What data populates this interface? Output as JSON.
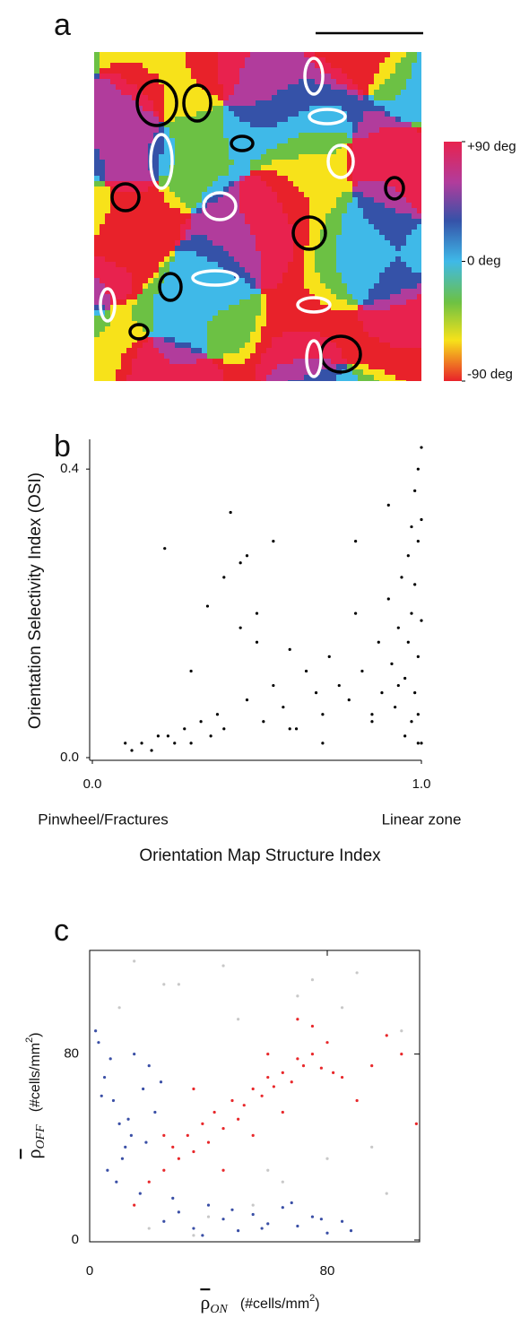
{
  "chart_data": [
    {
      "type": "image",
      "panel_label": "a",
      "clim": [
        -90,
        90
      ],
      "colorbar_ticks": [
        {
          "value": 90,
          "label": "+90 deg"
        },
        {
          "value": 0,
          "label": "0 deg"
        },
        {
          "value": -90,
          "label": "-90 deg"
        }
      ]
    },
    {
      "type": "scatter",
      "panel_label": "b",
      "color": "#000000",
      "ylabel": "Orientation Selectivity Index (OSI)",
      "xlabel": "Orientation Map Structure Index",
      "annotations": [
        "Pinwheel/Fractures",
        "Linear zone"
      ],
      "xlim": [
        0,
        1
      ],
      "ylim": [
        0,
        0.44
      ],
      "xticks": [
        {
          "value": 0,
          "label": "0.0"
        },
        {
          "value": 1,
          "label": "1.0"
        }
      ],
      "yticks": [
        {
          "value": 0,
          "label": "0.0"
        },
        {
          "value": 0.4,
          "label": "0.4"
        }
      ],
      "x": [
        0.12,
        0.15,
        0.18,
        0.2,
        0.22,
        0.25,
        0.28,
        0.3,
        0.33,
        0.35,
        0.38,
        0.4,
        0.42,
        0.45,
        0.47,
        0.5,
        0.52,
        0.55,
        0.58,
        0.6,
        0.62,
        0.65,
        0.68,
        0.7,
        0.72,
        0.75,
        0.78,
        0.8,
        0.82,
        0.85,
        0.87,
        0.88,
        0.9,
        0.91,
        0.92,
        0.93,
        0.94,
        0.95,
        0.95,
        0.96,
        0.96,
        0.97,
        0.97,
        0.97,
        0.98,
        0.98,
        0.98,
        0.99,
        0.99,
        0.99,
        0.99,
        0.99,
        1.0,
        1.0,
        1.0,
        1.0,
        0.23,
        0.4,
        0.45,
        0.47,
        0.5,
        0.36,
        0.55,
        0.8,
        0.85,
        0.1,
        0.3,
        0.6,
        0.7,
        0.9,
        0.93
      ],
      "values": [
        0.01,
        0.02,
        0.01,
        0.03,
        0.29,
        0.02,
        0.04,
        0.12,
        0.05,
        0.21,
        0.06,
        0.25,
        0.34,
        0.27,
        0.08,
        0.2,
        0.05,
        0.1,
        0.07,
        0.15,
        0.04,
        0.12,
        0.09,
        0.06,
        0.14,
        0.1,
        0.08,
        0.2,
        0.12,
        0.05,
        0.16,
        0.09,
        0.22,
        0.13,
        0.07,
        0.18,
        0.25,
        0.03,
        0.11,
        0.28,
        0.16,
        0.05,
        0.2,
        0.32,
        0.09,
        0.24,
        0.37,
        0.02,
        0.14,
        0.3,
        0.4,
        0.06,
        0.19,
        0.33,
        0.43,
        0.02,
        0.03,
        0.04,
        0.18,
        0.28,
        0.16,
        0.03,
        0.3,
        0.3,
        0.06,
        0.02,
        0.02,
        0.04,
        0.02,
        0.35,
        0.1
      ]
    },
    {
      "type": "scatter",
      "panel_label": "c",
      "ylabel": {
        "symbol": "ρ",
        "subscript": "OFF",
        "unit": "(#cells/mm",
        "power": "2",
        "close": ")"
      },
      "xlabel": {
        "symbol": "ρ",
        "subscript": "ON",
        "unit": "(#cells/mm",
        "power": "2",
        "close": ")"
      },
      "xlim": [
        0,
        112
      ],
      "ylim": [
        0,
        125
      ],
      "xticks": [
        0,
        80
      ],
      "yticks": [
        0,
        80
      ],
      "series": [
        {
          "color": "#c8c8c8",
          "x": [
            10,
            30,
            50,
            70,
            90,
            105,
            20,
            40,
            60,
            80,
            100,
            15,
            45,
            75,
            95,
            35,
            65,
            85,
            55,
            25
          ],
          "values": [
            100,
            110,
            95,
            105,
            115,
            90,
            5,
            10,
            30,
            35,
            20,
            120,
            118,
            112,
            40,
            2,
            25,
            100,
            15,
            110
          ]
        },
        {
          "color": "#3a4fa6",
          "x": [
            3,
            5,
            8,
            10,
            12,
            15,
            18,
            20,
            22,
            6,
            9,
            14,
            2,
            11,
            17,
            4,
            7,
            13,
            19,
            24,
            25,
            30,
            35,
            40,
            45,
            50,
            55,
            60,
            65,
            70,
            75,
            80,
            85,
            28,
            38,
            48,
            58,
            68,
            78,
            88
          ],
          "values": [
            85,
            70,
            60,
            50,
            40,
            80,
            65,
            75,
            55,
            30,
            25,
            45,
            90,
            35,
            20,
            62,
            78,
            52,
            42,
            68,
            8,
            12,
            5,
            15,
            9,
            4,
            11,
            7,
            14,
            6,
            10,
            3,
            8,
            18,
            2,
            13,
            5,
            16,
            9,
            4
          ]
        },
        {
          "color": "#e8282b",
          "x": [
            15,
            20,
            25,
            28,
            30,
            33,
            35,
            38,
            40,
            42,
            45,
            48,
            50,
            52,
            55,
            58,
            60,
            62,
            65,
            68,
            70,
            72,
            75,
            78,
            80,
            82,
            85,
            90,
            95,
            100,
            105,
            110,
            45,
            55,
            65,
            75,
            35,
            25,
            60,
            70
          ],
          "values": [
            15,
            25,
            30,
            40,
            35,
            45,
            38,
            50,
            42,
            55,
            48,
            60,
            52,
            58,
            65,
            62,
            70,
            66,
            72,
            68,
            78,
            75,
            80,
            74,
            85,
            72,
            70,
            60,
            75,
            88,
            80,
            50,
            30,
            45,
            55,
            92,
            65,
            45,
            80,
            95
          ]
        }
      ]
    }
  ]
}
